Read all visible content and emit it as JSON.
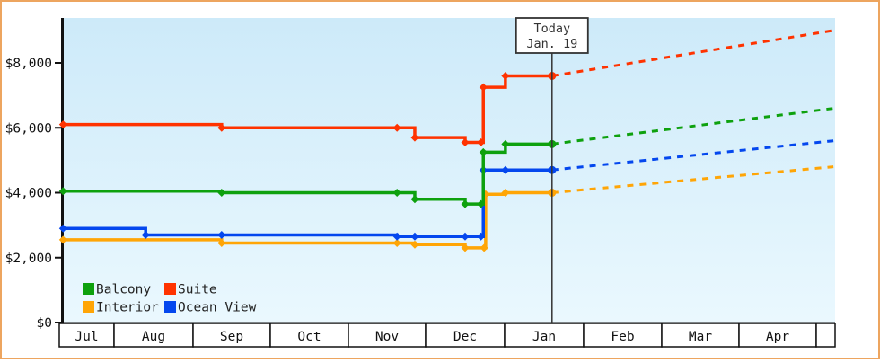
{
  "frame": {
    "border_color": "#eda55f",
    "background": "#ffffff",
    "plot_bg_top": "#cdeaf9",
    "plot_bg_bottom": "#eaf8fe",
    "axis_color": "#111111"
  },
  "chart_data": {
    "type": "line",
    "title": "",
    "description": "Cruise cabin price history by category (step lines with markers), dashed projection lines after today",
    "x_axis": {
      "months": [
        "Jul",
        "Aug",
        "Sep",
        "Oct",
        "Nov",
        "Dec",
        "Jan",
        "Feb",
        "Mar",
        "Apr"
      ],
      "t_note": "t = months since Jul 1 (0 = Jul 1, 6 = Jan 1)"
    },
    "y_axis": {
      "ticks": [
        0,
        2000,
        4000,
        6000,
        8000
      ],
      "tick_labels": [
        "$0",
        "$2,000",
        "$4,000",
        "$6,000",
        "$8,000"
      ],
      "max": 9400,
      "grid": false
    },
    "today": {
      "t": 6.6,
      "line1": "Today",
      "line2": "Jan. 19"
    },
    "projection_end_t": 10.22,
    "series": [
      {
        "name": "Balcony",
        "color": "#0ea10e",
        "points": [
          [
            0.07,
            4050
          ],
          [
            2.37,
            4000
          ],
          [
            4.63,
            4000
          ],
          [
            4.86,
            3800
          ],
          [
            5.5,
            3650
          ],
          [
            5.7,
            3650
          ],
          [
            5.73,
            5250
          ],
          [
            6.01,
            5500
          ],
          [
            6.6,
            5500
          ]
        ],
        "projected_value": 6600
      },
      {
        "name": "Suite",
        "color": "#ff3300",
        "points": [
          [
            0.07,
            6100
          ],
          [
            2.37,
            6000
          ],
          [
            4.63,
            6000
          ],
          [
            4.86,
            5700
          ],
          [
            5.5,
            5550
          ],
          [
            5.7,
            5550
          ],
          [
            5.73,
            7250
          ],
          [
            6.01,
            7600
          ],
          [
            6.6,
            7600
          ]
        ],
        "projected_value": 9000
      },
      {
        "name": "Interior",
        "color": "#ffa506",
        "points": [
          [
            0.07,
            2550
          ],
          [
            2.37,
            2450
          ],
          [
            4.63,
            2450
          ],
          [
            4.86,
            2400
          ],
          [
            5.5,
            2300
          ],
          [
            5.74,
            2300
          ],
          [
            5.76,
            3950
          ],
          [
            6.01,
            4000
          ],
          [
            6.6,
            4000
          ]
        ],
        "projected_value": 4800
      },
      {
        "name": "Ocean View",
        "color": "#0447ee",
        "points": [
          [
            0.07,
            2900
          ],
          [
            1.4,
            2700
          ],
          [
            2.37,
            2700
          ],
          [
            4.63,
            2650
          ],
          [
            4.86,
            2650
          ],
          [
            5.5,
            2650
          ],
          [
            5.7,
            2650
          ],
          [
            5.73,
            4700
          ],
          [
            6.01,
            4700
          ],
          [
            6.6,
            4700
          ]
        ],
        "projected_value": 5600
      }
    ],
    "legend": {
      "position": "bottom-left",
      "items": [
        {
          "label": "Balcony",
          "color": "#0ea10e"
        },
        {
          "label": "Suite",
          "color": "#ff3300"
        },
        {
          "label": "Interior",
          "color": "#ffa506"
        },
        {
          "label": "Ocean View",
          "color": "#0447ee"
        }
      ]
    }
  }
}
